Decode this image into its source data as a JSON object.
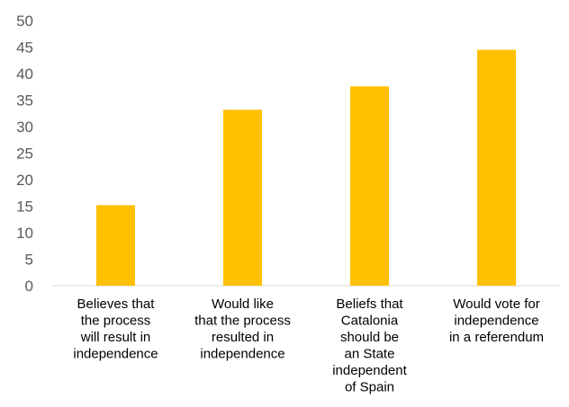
{
  "chart_data": {
    "type": "bar",
    "categories": [
      [
        "Believes that",
        "the process",
        "will result in",
        "independence"
      ],
      [
        "Would like",
        "that the process",
        "resulted in",
        "independence"
      ],
      [
        "Beliefs that",
        "Catalonia",
        "should be",
        "an State",
        "independent",
        "of Spain"
      ],
      [
        "Would vote for",
        "independence",
        "in a referendum"
      ]
    ],
    "values": [
      15.2,
      33.2,
      37.6,
      44.5
    ],
    "ylim": [
      0,
      50
    ],
    "yticks": [
      0,
      5,
      10,
      15,
      20,
      25,
      30,
      35,
      40,
      45,
      50
    ],
    "grid": false,
    "title": "",
    "xlabel": "",
    "ylabel": "",
    "colors": {
      "bar": "#FFC000",
      "axis": "#D9D9D9",
      "tick_text": "#595959",
      "label_text": "#000000"
    }
  }
}
